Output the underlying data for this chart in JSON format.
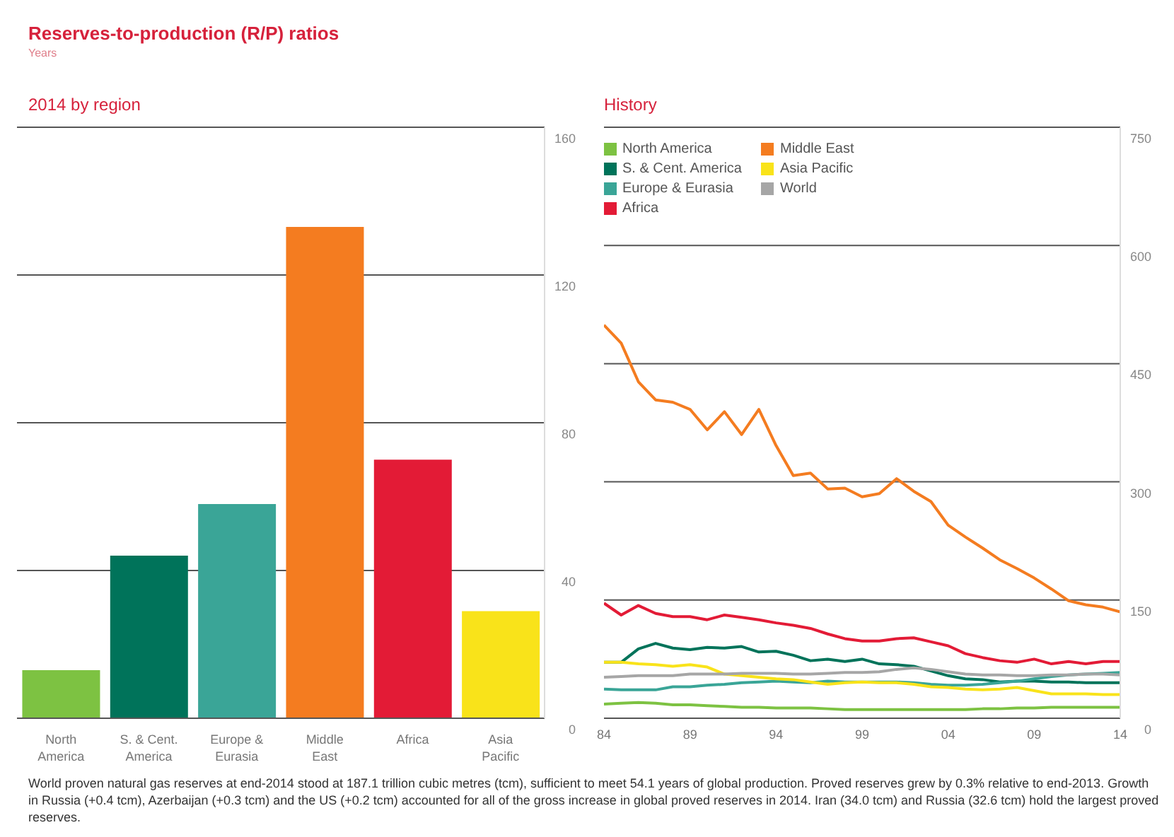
{
  "chart_data": [
    {
      "type": "bar",
      "title": "Reserves-to-production (R/P) ratios",
      "ylabel": "Years",
      "subtitle": "2014 by region",
      "categories": [
        "North America",
        "S. & Cent. America",
        "Europe & Eurasia",
        "Middle East",
        "Africa",
        "Asia Pacific"
      ],
      "values": [
        13,
        44,
        58,
        133,
        70,
        29
      ],
      "colors": [
        "#7dc242",
        "#00735a",
        "#3aa597",
        "#f47c20",
        "#e31b36",
        "#f9e31a"
      ],
      "ylim": [
        0,
        160
      ],
      "yticks": [
        0,
        40,
        80,
        120,
        160
      ],
      "grid": "y"
    },
    {
      "type": "line",
      "title": "History",
      "x": [
        1984,
        1985,
        1986,
        1987,
        1988,
        1989,
        1990,
        1991,
        1992,
        1993,
        1994,
        1995,
        1996,
        1997,
        1998,
        1999,
        2000,
        2001,
        2002,
        2003,
        2004,
        2005,
        2006,
        2007,
        2008,
        2009,
        2010,
        2011,
        2012,
        2013,
        2014
      ],
      "series": [
        {
          "name": "North America",
          "color": "#7dc242",
          "values": [
            18,
            19,
            20,
            19,
            17,
            17,
            16,
            15,
            14,
            14,
            13,
            13,
            13,
            12,
            11,
            11,
            11,
            11,
            11,
            11,
            11,
            11,
            12,
            12,
            13,
            13,
            14,
            14,
            14,
            14,
            14
          ]
        },
        {
          "name": "S. & Cent. America",
          "color": "#00735a",
          "values": [
            71,
            71,
            88,
            95,
            89,
            87,
            90,
            89,
            91,
            84,
            85,
            80,
            73,
            75,
            72,
            75,
            69,
            68,
            66,
            60,
            54,
            50,
            49,
            46,
            47,
            47,
            46,
            46,
            45,
            45,
            45
          ]
        },
        {
          "name": "Europe & Eurasia",
          "color": "#3aa597",
          "values": [
            37,
            36,
            36,
            36,
            40,
            40,
            42,
            43,
            45,
            46,
            47,
            46,
            45,
            47,
            46,
            46,
            46,
            46,
            45,
            43,
            42,
            42,
            43,
            45,
            47,
            50,
            53,
            55,
            56,
            57,
            58
          ]
        },
        {
          "name": "Africa",
          "color": "#e31b36",
          "values": [
            146,
            131,
            143,
            133,
            129,
            129,
            125,
            131,
            128,
            125,
            121,
            118,
            114,
            107,
            101,
            98,
            98,
            101,
            102,
            97,
            92,
            82,
            77,
            73,
            71,
            75,
            69,
            72,
            69,
            72,
            72
          ]
        },
        {
          "name": "Middle East",
          "color": "#f47c20",
          "values": [
            499,
            476,
            427,
            404,
            401,
            392,
            366,
            389,
            360,
            392,
            346,
            308,
            311,
            291,
            292,
            281,
            285,
            304,
            288,
            275,
            245,
            230,
            216,
            201,
            190,
            178,
            164,
            149,
            144,
            141,
            135
          ]
        },
        {
          "name": "Asia Pacific",
          "color": "#f9e31a",
          "values": [
            71,
            71,
            69,
            68,
            66,
            68,
            65,
            56,
            54,
            52,
            50,
            49,
            46,
            43,
            45,
            46,
            45,
            45,
            43,
            40,
            39,
            37,
            36,
            37,
            39,
            35,
            31,
            31,
            31,
            30,
            30
          ]
        },
        {
          "name": "World",
          "color": "#a6a6a6",
          "values": [
            52,
            53,
            54,
            54,
            54,
            56,
            56,
            56,
            57,
            57,
            57,
            56,
            56,
            57,
            58,
            58,
            59,
            62,
            64,
            62,
            59,
            56,
            55,
            55,
            54,
            54,
            55,
            55,
            56,
            56,
            55
          ]
        }
      ],
      "xlim": [
        1984,
        2014
      ],
      "xticks": [
        {
          "value": 1984,
          "label": "84"
        },
        {
          "value": 1989,
          "label": "89"
        },
        {
          "value": 1994,
          "label": "94"
        },
        {
          "value": 1999,
          "label": "99"
        },
        {
          "value": 2004,
          "label": "04"
        },
        {
          "value": 2009,
          "label": "09"
        },
        {
          "value": 2014,
          "label": "14"
        }
      ],
      "ylim": [
        0,
        750
      ],
      "yticks": [
        0,
        150,
        300,
        450,
        600,
        750
      ],
      "grid": "y",
      "legend": "top left",
      "marker": "none",
      "line_style": "solid",
      "annotations": [
        "World proven natural gas reserves at end-2014 stood at 187.1 trillion cubic metres (tcm), sufficient to meet 54.1 years of global production. Proved reserves grew by 0.3% relative to end-2013. Growth in Russia (+0.4 tcm), Azerbaijan (+0.3 tcm) and the US (+0.2 tcm) accounted for all of the gross increase in global proved reserves in 2014. Iran (34.0 tcm) and Russia (32.6 tcm) hold the largest proved reserves."
      ]
    }
  ]
}
